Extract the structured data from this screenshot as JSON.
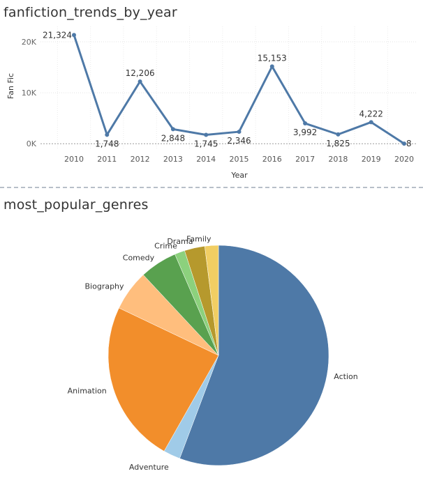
{
  "charts": {
    "line": {
      "title": "fanfiction_trends_by_year"
    },
    "pie": {
      "title": "most_popular_genres"
    }
  },
  "chart_data": [
    {
      "type": "line",
      "title": "fanfiction_trends_by_year",
      "xlabel": "Year",
      "ylabel": "Fan Fic",
      "x": [
        "2010",
        "2011",
        "2012",
        "2013",
        "2014",
        "2015",
        "2016",
        "2017",
        "2018",
        "2019",
        "2020"
      ],
      "values": [
        21324,
        1748,
        12206,
        2848,
        1745,
        2346,
        15153,
        3992,
        1825,
        4222,
        8
      ],
      "data_labels": [
        "21,324",
        "1,748",
        "12,206",
        "2,848",
        "1,745",
        "2,346",
        "15,153",
        "3,992",
        "1,825",
        "4,222",
        "8"
      ],
      "yticks": [
        0,
        10000,
        20000
      ],
      "ytick_labels": [
        "0K",
        "10K",
        "20K"
      ],
      "ylim": [
        -1200,
        23000
      ],
      "grid": true,
      "line_color": "#4e79a7"
    },
    {
      "type": "pie",
      "title": "most_popular_genres",
      "categories": [
        "Action",
        "Adventure",
        "Animation",
        "Biography",
        "Comedy",
        "Crime",
        "Drama",
        "Family"
      ],
      "values": [
        56.0,
        2.5,
        24.0,
        6.0,
        5.5,
        1.5,
        3.0,
        2.0
      ],
      "colors": [
        "#4e79a7",
        "#a0cbe8",
        "#f28e2b",
        "#ffbe7d",
        "#59a14f",
        "#8cd17d",
        "#b6992d",
        "#f1ce63"
      ]
    }
  ]
}
